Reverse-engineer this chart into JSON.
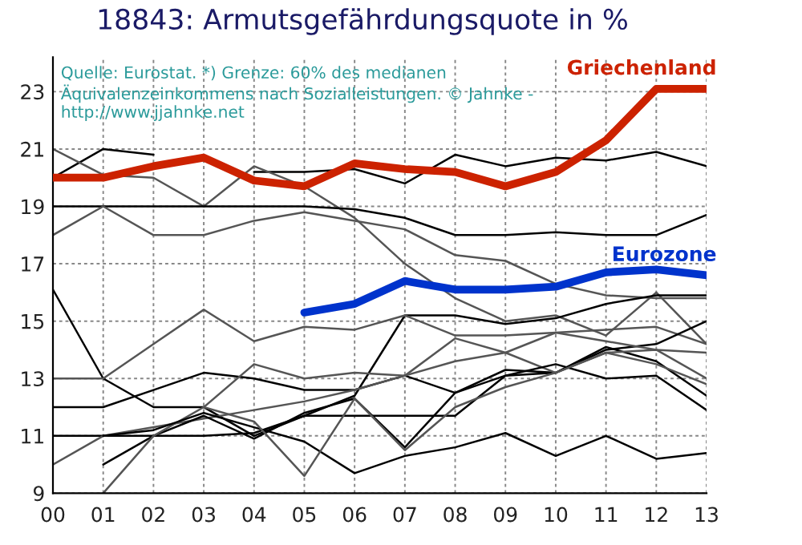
{
  "chart_data": {
    "type": "line",
    "title": "18843: Armutsgefährdungsquote in %",
    "annotations": [
      "Quelle: Eurostat. *) Grenze: 60% des medianen Äquivalenzeinkommens nach Sozialleistungen. © Jahnke - http://www.jjahnke.net"
    ],
    "x": [
      2000,
      2001,
      2002,
      2003,
      2004,
      2005,
      2006,
      2007,
      2008,
      2009,
      2010,
      2011,
      2012,
      2013
    ],
    "xlim": [
      2000,
      2013
    ],
    "xticks": [
      {
        "value": 2000,
        "label": "00"
      },
      {
        "value": 2001,
        "label": "01"
      },
      {
        "value": 2002,
        "label": "02"
      },
      {
        "value": 2003,
        "label": "03"
      },
      {
        "value": 2004,
        "label": "04"
      },
      {
        "value": 2005,
        "label": "05"
      },
      {
        "value": 2006,
        "label": "06"
      },
      {
        "value": 2007,
        "label": "07"
      },
      {
        "value": 2008,
        "label": "08"
      },
      {
        "value": 2009,
        "label": "09"
      },
      {
        "value": 2010,
        "label": "10"
      },
      {
        "value": 2011,
        "label": "11"
      },
      {
        "value": 2012,
        "label": "12"
      },
      {
        "value": 2013,
        "label": "13"
      }
    ],
    "ylim": [
      9,
      24.2
    ],
    "yticks": [
      9,
      11,
      13,
      15,
      17,
      19,
      21,
      23
    ],
    "grid": true,
    "legend": false,
    "series": [
      {
        "color": "#000000",
        "values": [
          20.0,
          21.0,
          20.8,
          null,
          20.2,
          20.2,
          20.3,
          19.8,
          20.8,
          20.4,
          20.7,
          20.6,
          20.9,
          20.4
        ]
      },
      {
        "color": "#555555",
        "values": [
          21.0,
          20.1,
          20.0,
          19.0,
          20.4,
          19.7,
          18.6,
          17.0,
          15.8,
          15.0,
          15.2,
          14.5,
          16.0,
          14.2
        ]
      },
      {
        "color": "#000000",
        "values": [
          19.0,
          19.0,
          19.0,
          19.0,
          19.0,
          19.0,
          18.9,
          18.6,
          18.0,
          18.0,
          18.1,
          18.0,
          18.0,
          18.7
        ]
      },
      {
        "color": "#555555",
        "values": [
          18.0,
          19.0,
          18.0,
          18.0,
          18.5,
          18.8,
          18.5,
          18.2,
          17.3,
          17.1,
          16.3,
          15.9,
          15.8,
          15.8
        ]
      },
      {
        "color": "#000000",
        "values": [
          16.1,
          13.0,
          12.0,
          12.0,
          11.0,
          11.7,
          12.4,
          15.2,
          15.2,
          14.9,
          15.1,
          15.6,
          15.9,
          15.9
        ]
      },
      {
        "color": "#555555",
        "values": [
          13.0,
          13.0,
          14.2,
          15.4,
          14.3,
          14.8,
          14.7,
          15.2,
          14.5,
          14.5,
          14.6,
          14.7,
          14.8,
          14.2
        ]
      },
      {
        "color": "#000000",
        "values": [
          12.0,
          12.0,
          12.6,
          13.2,
          13.0,
          12.6,
          12.6,
          13.1,
          12.5,
          13.3,
          13.2,
          14.0,
          14.2,
          15.0
        ]
      },
      {
        "color": "#000000",
        "values": [
          11.0,
          11.0,
          11.0,
          11.0,
          11.1,
          11.7,
          11.7,
          11.7,
          11.7,
          13.1,
          13.2,
          14.1,
          13.6,
          12.4
        ]
      },
      {
        "color": "#555555",
        "values": [
          10.0,
          11.0,
          11.3,
          11.6,
          11.9,
          12.2,
          12.6,
          13.1,
          13.6,
          13.9,
          13.2,
          13.9,
          14.0,
          13.9
        ]
      },
      {
        "color": "#000000",
        "values": [
          null,
          10.0,
          11.0,
          11.7,
          10.9,
          11.8,
          12.3,
          10.6,
          12.5,
          13.1,
          13.5,
          13.0,
          13.1,
          11.9
        ]
      },
      {
        "color": "#555555",
        "values": [
          null,
          9.0,
          11.0,
          12.0,
          13.5,
          13.0,
          13.2,
          13.1,
          14.4,
          13.9,
          14.6,
          14.3,
          14.0,
          13.0
        ]
      },
      {
        "color": "#000000",
        "values": [
          null,
          11.0,
          11.2,
          11.8,
          11.3,
          10.8,
          9.7,
          10.3,
          10.6,
          11.1,
          10.3,
          11.0,
          10.2,
          10.4
        ]
      },
      {
        "color": "#555555",
        "values": [
          null,
          null,
          null,
          12.0,
          11.5,
          9.6,
          12.3,
          10.5,
          12.0,
          12.7,
          13.2,
          13.9,
          13.5,
          12.8
        ]
      },
      {
        "name": "Griechenland",
        "color": "#cc2200",
        "values": [
          20.0,
          20.0,
          20.4,
          20.7,
          19.9,
          19.7,
          20.5,
          20.3,
          20.2,
          19.7,
          20.2,
          21.3,
          23.1,
          23.1
        ]
      },
      {
        "name": "Eurozone",
        "color": "#0033cc",
        "values": [
          null,
          null,
          null,
          null,
          null,
          15.3,
          15.6,
          16.4,
          16.1,
          16.1,
          16.2,
          16.7,
          16.8,
          16.6
        ]
      }
    ]
  }
}
